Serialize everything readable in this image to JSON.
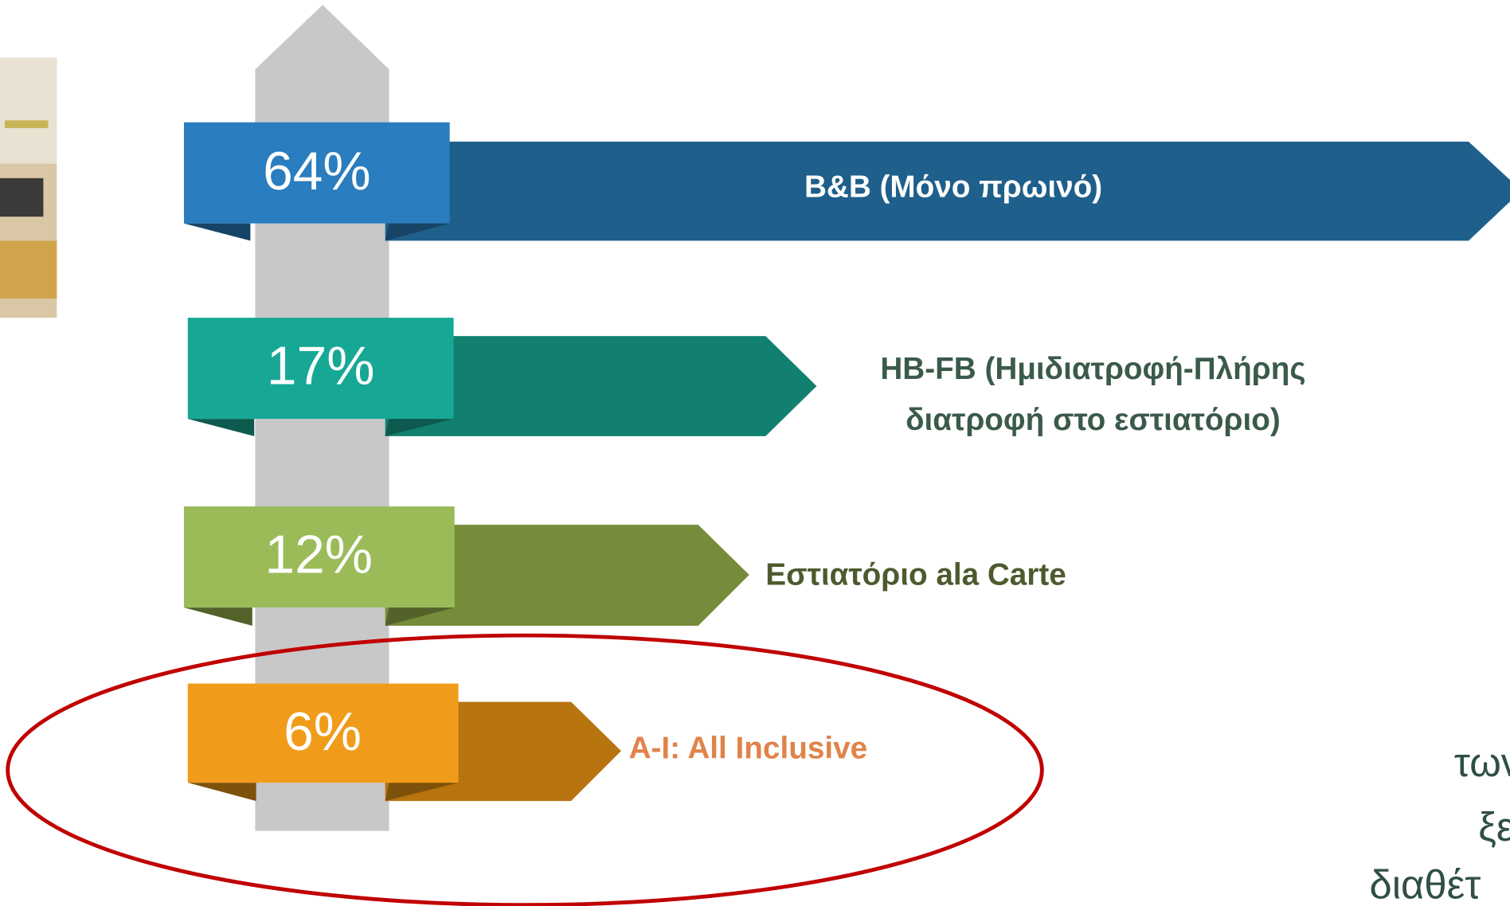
{
  "rows": [
    {
      "value": "64%",
      "label_lines": [
        "B&B (Μόνο πρωινό)"
      ]
    },
    {
      "value": "17%",
      "label_lines": [
        "HB-FB (Ημιδιατροφή-Πλήρης",
        "διατροφή στο εστιατόριο)"
      ]
    },
    {
      "value": "12%",
      "label_lines": [
        "Εστιατόριο ala Carte"
      ]
    },
    {
      "value": "6%",
      "label_lines": [
        "A-I: All Inclusive"
      ]
    }
  ],
  "side_text": [
    "των",
    "ξεν",
    "διαθέτ"
  ]
}
